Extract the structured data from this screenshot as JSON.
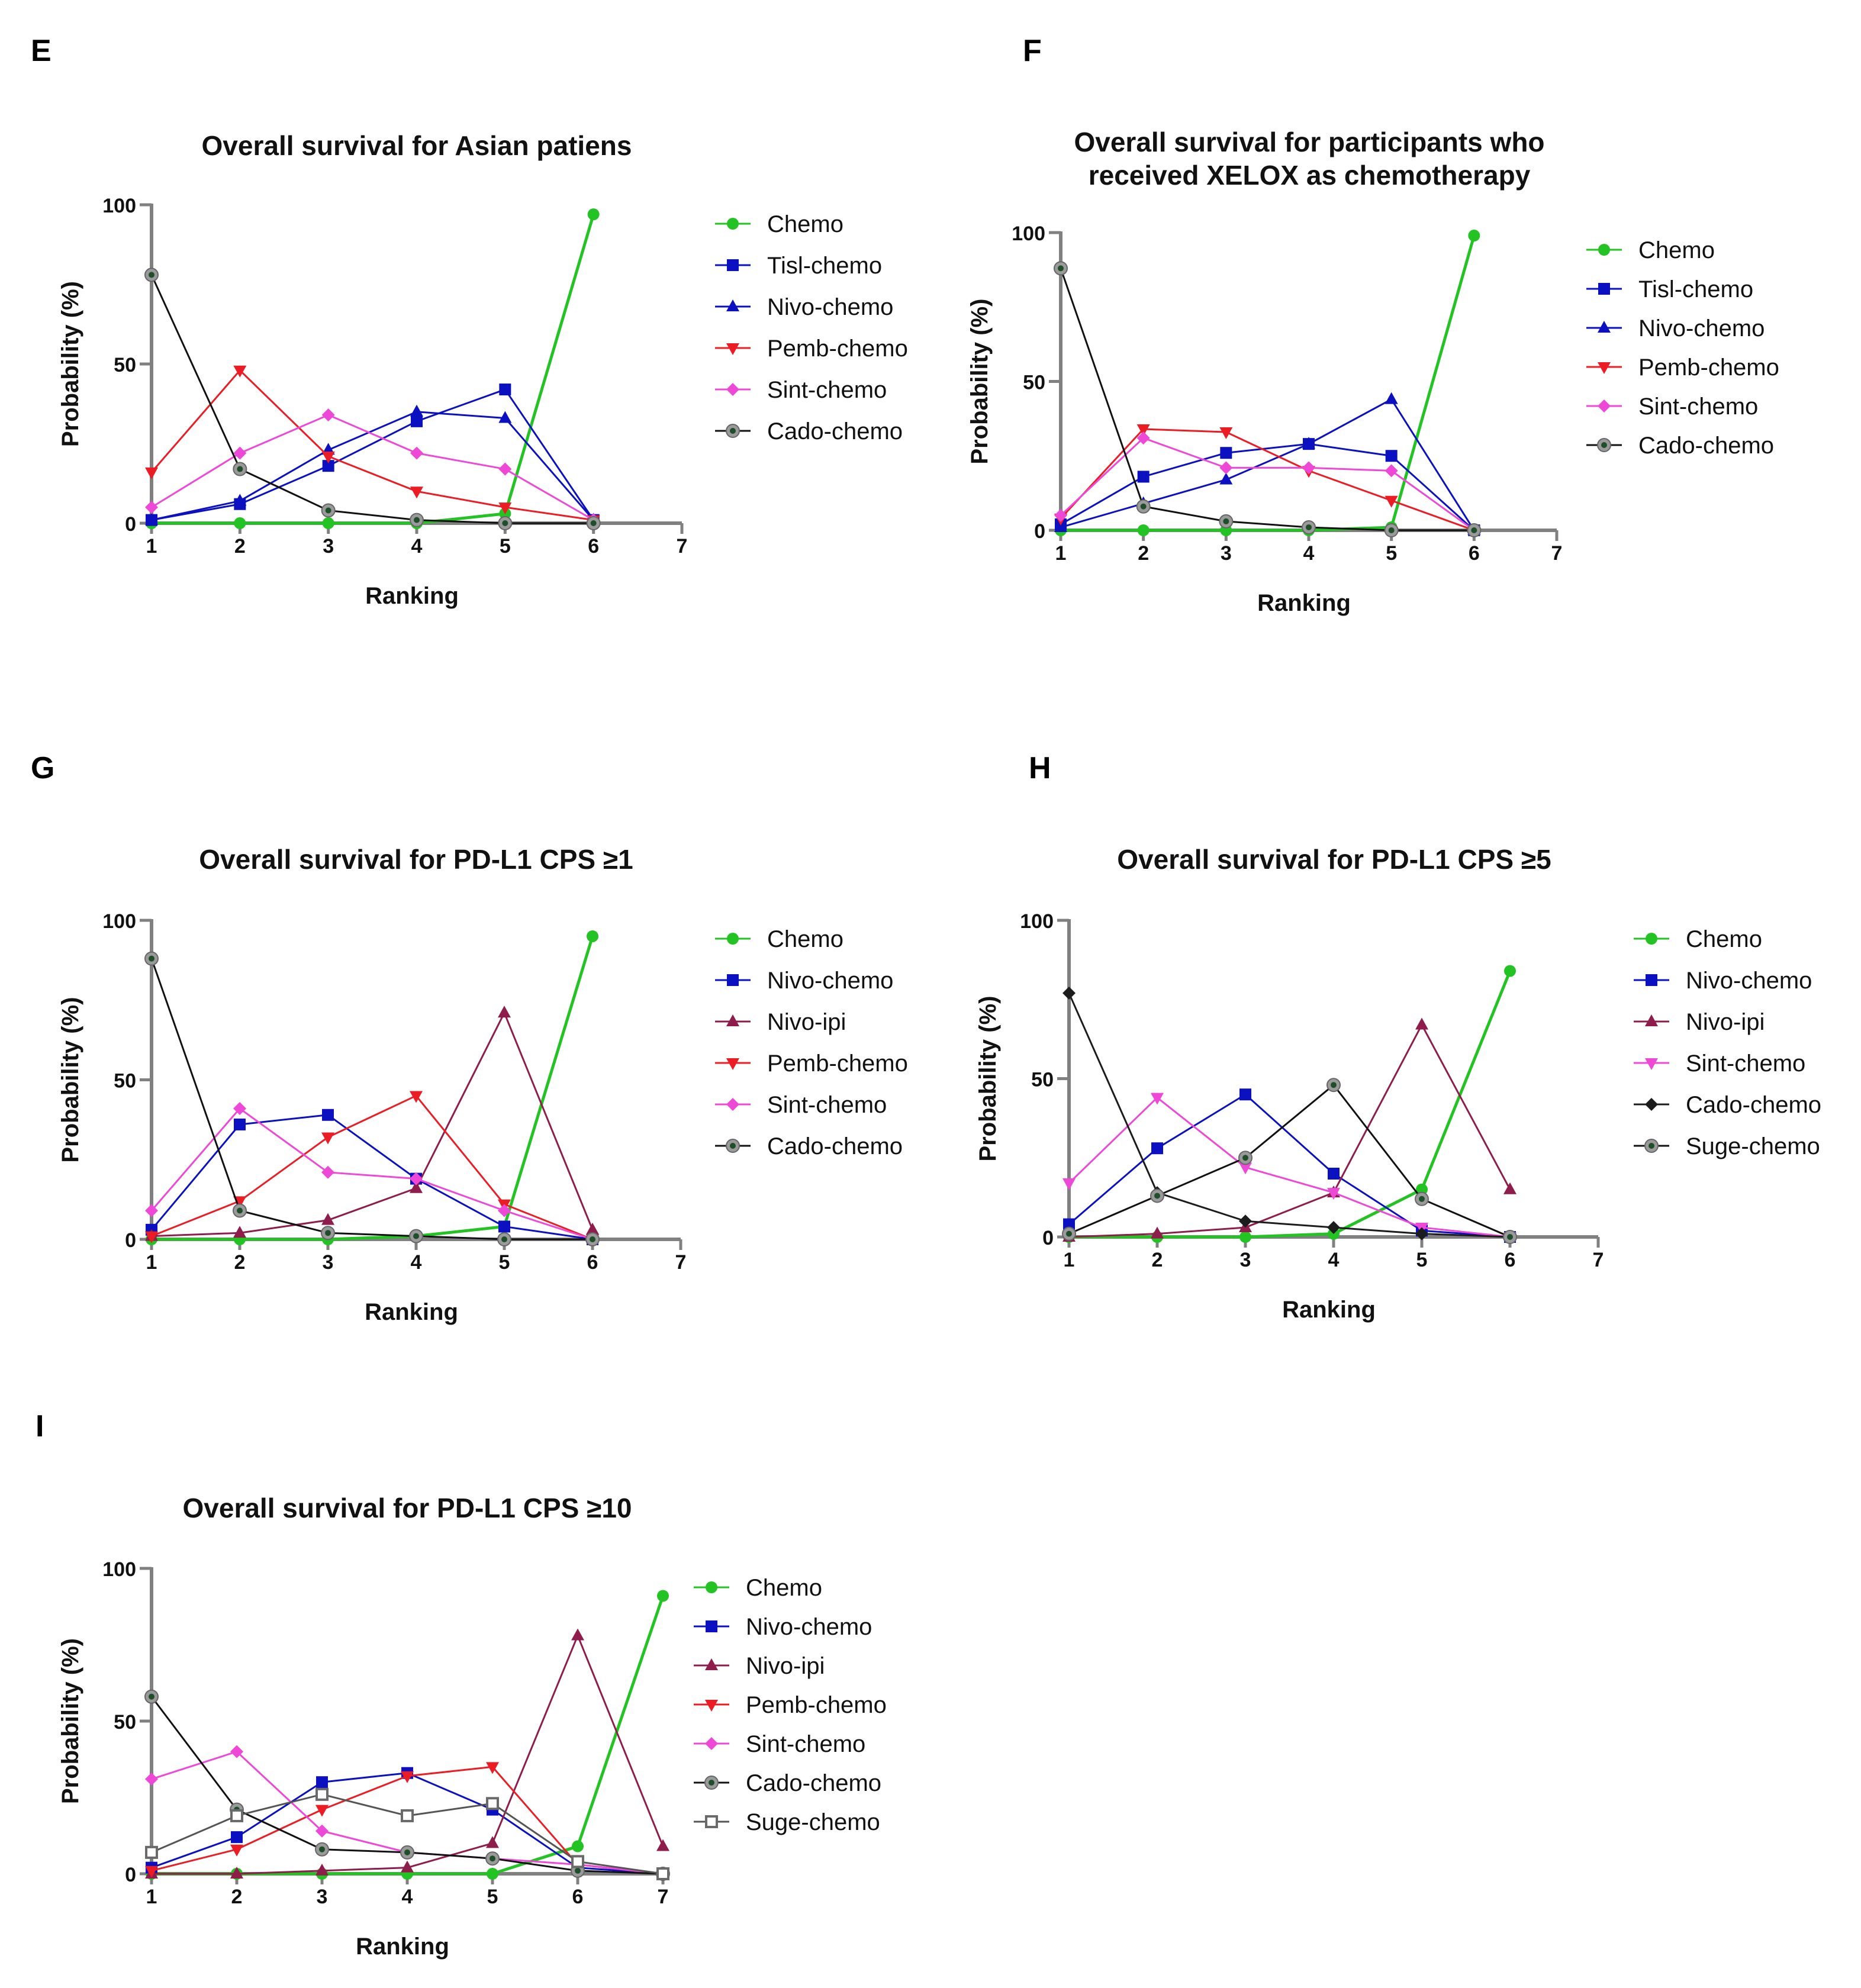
{
  "panel_letters": [
    "E",
    "F",
    "G",
    "H",
    "I"
  ],
  "colors": {
    "Chemo": "#22c322",
    "Tisl-chemo": "#0b10c0",
    "Nivo-chemo": "#0b10c0",
    "Nivo-ipi": "#8e1d4b",
    "Pemb-chemo": "#ec1c24",
    "Sint-chemo": "#ee49d6",
    "Cado-chemo": "#1c1c1c",
    "Suge-chemo": "#6a6a6a",
    "axis": "#808080"
  },
  "chart_data": [
    {
      "id": "E",
      "type": "line",
      "title": [
        "Overall survival for Asian patiens"
      ],
      "xlabel": "Ranking",
      "ylabel": "Probability (%)",
      "xlim": [
        1,
        7
      ],
      "ylim": [
        0,
        100
      ],
      "x_ticks": [
        "1",
        "2",
        "3",
        "4",
        "5",
        "6",
        "7"
      ],
      "y_ticks": [
        "0",
        "50",
        "100"
      ],
      "series": [
        {
          "name": "Chemo",
          "marker": "circle",
          "values": [
            0,
            0,
            0,
            0,
            3,
            97
          ]
        },
        {
          "name": "Tisl-chemo",
          "marker": "square",
          "values": [
            1,
            6,
            18,
            32,
            42,
            1
          ]
        },
        {
          "name": "Nivo-chemo",
          "marker": "triangle-up",
          "values": [
            1,
            7,
            23,
            35,
            33,
            1
          ]
        },
        {
          "name": "Pemb-chemo",
          "marker": "triangle-down",
          "values": [
            16,
            48,
            21,
            10,
            5,
            1
          ]
        },
        {
          "name": "Sint-chemo",
          "marker": "diamond",
          "values": [
            5,
            22,
            34,
            22,
            17,
            1
          ]
        },
        {
          "name": "Cado-chemo",
          "marker": "ring",
          "values": [
            78,
            17,
            4,
            1,
            0,
            0
          ]
        }
      ]
    },
    {
      "id": "F",
      "type": "line",
      "title": [
        "Overall survival for participants who",
        "received XELOX as chemotherapy"
      ],
      "xlabel": "Ranking",
      "ylabel": "Probability (%)",
      "xlim": [
        1,
        7
      ],
      "ylim": [
        0,
        100
      ],
      "x_ticks": [
        "1",
        "2",
        "3",
        "4",
        "5",
        "6",
        "7"
      ],
      "y_ticks": [
        "0",
        "50",
        "100"
      ],
      "series": [
        {
          "name": "Chemo",
          "marker": "circle",
          "values": [
            0,
            0,
            0,
            0,
            1,
            99
          ]
        },
        {
          "name": "Tisl-chemo",
          "marker": "square",
          "values": [
            2,
            18,
            26,
            29,
            25,
            0
          ]
        },
        {
          "name": "Nivo-chemo",
          "marker": "triangle-up",
          "values": [
            1,
            9,
            17,
            29,
            44,
            0
          ]
        },
        {
          "name": "Pemb-chemo",
          "marker": "triangle-down",
          "values": [
            4,
            34,
            33,
            20,
            10,
            0
          ]
        },
        {
          "name": "Sint-chemo",
          "marker": "diamond",
          "values": [
            5,
            31,
            21,
            21,
            20,
            0
          ]
        },
        {
          "name": "Cado-chemo",
          "marker": "ring",
          "values": [
            88,
            8,
            3,
            1,
            0,
            0
          ]
        }
      ]
    },
    {
      "id": "G",
      "type": "line",
      "title": [
        "Overall survival for PD-L1 CPS ≥1"
      ],
      "xlabel": "Ranking",
      "ylabel": "Probability (%)",
      "xlim": [
        1,
        7
      ],
      "ylim": [
        0,
        100
      ],
      "x_ticks": [
        "1",
        "2",
        "3",
        "4",
        "5",
        "6",
        "7"
      ],
      "y_ticks": [
        "0",
        "50",
        "100"
      ],
      "series": [
        {
          "name": "Chemo",
          "marker": "circle",
          "values": [
            0,
            0,
            0,
            1,
            4,
            95
          ]
        },
        {
          "name": "Nivo-chemo",
          "marker": "square",
          "values": [
            3,
            36,
            39,
            19,
            4,
            0
          ]
        },
        {
          "name": "Nivo-ipi",
          "marker": "triangle-up",
          "values": [
            1,
            2,
            6,
            16,
            71,
            3
          ]
        },
        {
          "name": "Pemb-chemo",
          "marker": "triangle-down",
          "values": [
            1,
            12,
            32,
            45,
            11,
            0
          ]
        },
        {
          "name": "Sint-chemo",
          "marker": "diamond",
          "values": [
            9,
            41,
            21,
            19,
            9,
            0
          ]
        },
        {
          "name": "Cado-chemo",
          "marker": "ring",
          "values": [
            88,
            9,
            2,
            1,
            0,
            0
          ]
        }
      ]
    },
    {
      "id": "H",
      "type": "line",
      "title": [
        "Overall survival for PD-L1 CPS ≥5"
      ],
      "xlabel": "Ranking",
      "ylabel": "Probability (%)",
      "xlim": [
        1,
        7
      ],
      "ylim": [
        0,
        100
      ],
      "x_ticks": [
        "1",
        "2",
        "3",
        "4",
        "5",
        "6",
        "7"
      ],
      "y_ticks": [
        "0",
        "50",
        "100"
      ],
      "series": [
        {
          "name": "Chemo",
          "marker": "circle",
          "values": [
            0,
            0,
            0,
            1,
            15,
            84
          ]
        },
        {
          "name": "Nivo-chemo",
          "marker": "square",
          "values": [
            4,
            28,
            45,
            20,
            2,
            0
          ]
        },
        {
          "name": "Nivo-ipi",
          "marker": "triangle-up",
          "values": [
            0,
            1,
            3,
            14,
            67,
            15
          ]
        },
        {
          "name": "Sint-chemo",
          "marker": "triangle-down",
          "values": [
            17,
            44,
            22,
            14,
            3,
            0
          ]
        },
        {
          "name": "Cado-chemo",
          "marker": "diamond",
          "values": [
            77,
            14,
            5,
            3,
            1,
            0
          ]
        },
        {
          "name": "Suge-chemo",
          "marker": "ring",
          "values": [
            1,
            13,
            25,
            48,
            12,
            0
          ]
        }
      ]
    },
    {
      "id": "I",
      "type": "line",
      "title": [
        "Overall survival for PD-L1 CPS ≥10"
      ],
      "xlabel": "Ranking",
      "ylabel": "Probability (%)",
      "xlim": [
        1,
        7
      ],
      "ylim": [
        0,
        100
      ],
      "x_ticks": [
        "1",
        "2",
        "3",
        "4",
        "5",
        "6",
        "7"
      ],
      "y_ticks": [
        "0",
        "50",
        "100"
      ],
      "series": [
        {
          "name": "Chemo",
          "marker": "circle",
          "values": [
            0,
            0,
            0,
            0,
            0,
            9,
            91
          ]
        },
        {
          "name": "Nivo-chemo",
          "marker": "square",
          "values": [
            2,
            12,
            30,
            33,
            21,
            2,
            0
          ]
        },
        {
          "name": "Nivo-ipi",
          "marker": "triangle-up",
          "values": [
            0,
            0,
            1,
            2,
            10,
            78,
            9
          ]
        },
        {
          "name": "Pemb-chemo",
          "marker": "triangle-down",
          "values": [
            1,
            8,
            21,
            32,
            35,
            3,
            0
          ]
        },
        {
          "name": "Sint-chemo",
          "marker": "diamond",
          "values": [
            31,
            40,
            14,
            7,
            5,
            3,
            0
          ]
        },
        {
          "name": "Cado-chemo",
          "marker": "ring",
          "values": [
            58,
            21,
            8,
            7,
            5,
            1,
            0
          ]
        },
        {
          "name": "Suge-chemo",
          "marker": "open-square",
          "values": [
            7,
            19,
            26,
            19,
            23,
            4,
            0
          ]
        }
      ]
    }
  ]
}
